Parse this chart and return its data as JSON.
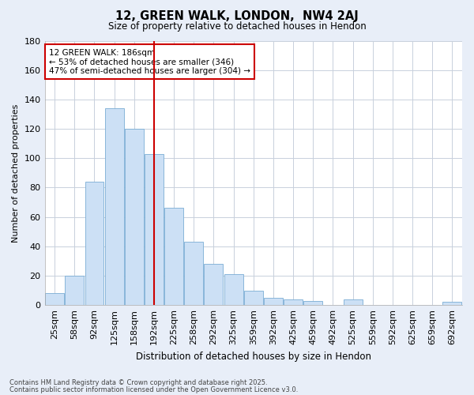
{
  "title": "12, GREEN WALK, LONDON,  NW4 2AJ",
  "subtitle": "Size of property relative to detached houses in Hendon",
  "xlabel": "Distribution of detached houses by size in Hendon",
  "ylabel": "Number of detached properties",
  "footnote1": "Contains HM Land Registry data © Crown copyright and database right 2025.",
  "footnote2": "Contains public sector information licensed under the Open Government Licence v3.0.",
  "annotation_line1": "12 GREEN WALK: 186sqm",
  "annotation_line2": "← 53% of detached houses are smaller (346)",
  "annotation_line3": "47% of semi-detached houses are larger (304) →",
  "bar_color": "#cce0f5",
  "bar_edge_color": "#7aadd4",
  "vline_color": "#cc0000",
  "annotation_box_edge": "#cc0000",
  "categories": [
    "25sqm",
    "58sqm",
    "92sqm",
    "125sqm",
    "158sqm",
    "192sqm",
    "225sqm",
    "258sqm",
    "292sqm",
    "325sqm",
    "359sqm",
    "392sqm",
    "425sqm",
    "459sqm",
    "492sqm",
    "525sqm",
    "559sqm",
    "592sqm",
    "625sqm",
    "659sqm",
    "692sqm"
  ],
  "values": [
    8,
    20,
    84,
    134,
    120,
    103,
    66,
    43,
    28,
    21,
    10,
    5,
    4,
    3,
    0,
    4,
    0,
    0,
    0,
    0,
    2
  ],
  "ylim_max": 180,
  "yticks": [
    0,
    20,
    40,
    60,
    80,
    100,
    120,
    140,
    160,
    180
  ],
  "background_color": "#e8eef8",
  "plot_background": "#ffffff",
  "grid_color": "#c8d0dc",
  "vline_x_index": 5
}
